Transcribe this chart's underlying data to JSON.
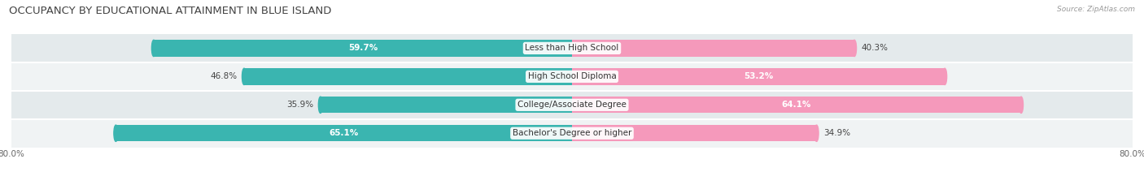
{
  "title": "OCCUPANCY BY EDUCATIONAL ATTAINMENT IN BLUE ISLAND",
  "source": "Source: ZipAtlas.com",
  "categories": [
    "Less than High School",
    "High School Diploma",
    "College/Associate Degree",
    "Bachelor's Degree or higher"
  ],
  "owner_values": [
    59.7,
    46.8,
    35.9,
    65.1
  ],
  "renter_values": [
    40.3,
    53.2,
    64.1,
    34.9
  ],
  "owner_color": "#3ab5b0",
  "renter_color": "#f599bb",
  "row_bg_odd": "#f0f3f4",
  "row_bg_even": "#e4eaec",
  "xlim_left": -80.0,
  "xlim_right": 80.0,
  "title_fontsize": 9.5,
  "source_fontsize": 6.5,
  "label_fontsize": 7.5,
  "value_fontsize": 7.5,
  "bar_height": 0.58
}
